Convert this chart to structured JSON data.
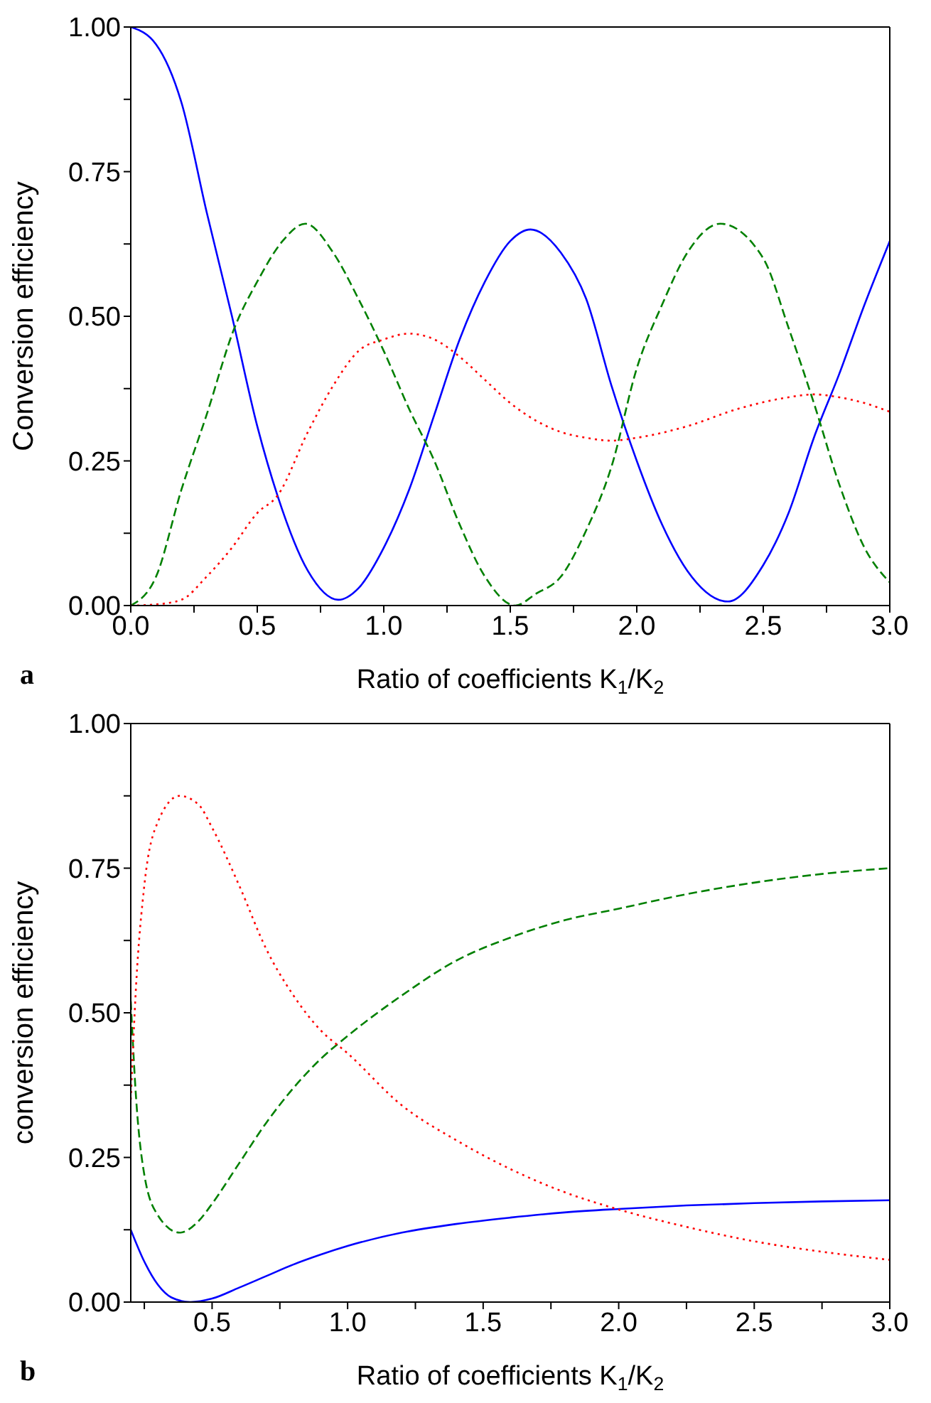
{
  "chart_data": [
    {
      "type": "line",
      "xlabel": "Ratio of coefficients K$_{1}$/K$_{2}$",
      "ylabel": "Conversion efficiency",
      "annotations": [
        "a"
      ],
      "xlim": [
        0,
        3.0
      ],
      "ylim": [
        0,
        1.0
      ],
      "xticks": [
        {
          "value": 0,
          "label": "0.0"
        },
        {
          "value": 0.25,
          "label": null
        },
        {
          "value": 0.5,
          "label": "0.5"
        },
        {
          "value": 0.75,
          "label": null
        },
        {
          "value": 1.0,
          "label": "1.0"
        },
        {
          "value": 1.25,
          "label": null
        },
        {
          "value": 1.5,
          "label": "1.5"
        },
        {
          "value": 1.75,
          "label": null
        },
        {
          "value": 2.0,
          "label": "2.0"
        },
        {
          "value": 2.25,
          "label": null
        },
        {
          "value": 2.5,
          "label": "2.5"
        },
        {
          "value": 2.75,
          "label": null
        },
        {
          "value": 3.0,
          "label": "3.0"
        }
      ],
      "yticks": [
        {
          "value": 0,
          "label": "0.00"
        },
        {
          "value": 0.125,
          "label": null
        },
        {
          "value": 0.25,
          "label": "0.25"
        },
        {
          "value": 0.375,
          "label": null
        },
        {
          "value": 0.5,
          "label": "0.50"
        },
        {
          "value": 0.625,
          "label": null
        },
        {
          "value": 0.75,
          "label": "0.75"
        },
        {
          "value": 0.875,
          "label": null
        },
        {
          "value": 1.0,
          "label": "1.00"
        }
      ],
      "series": [
        {
          "color": "#0000ff",
          "line_style": "solid",
          "x": [
            0,
            0.1,
            0.2,
            0.3,
            0.4,
            0.5,
            0.58,
            0.7,
            0.82,
            0.9,
            1.0,
            1.1,
            1.2,
            1.3,
            1.4,
            1.5,
            1.58,
            1.7,
            1.8,
            1.9,
            2.0,
            2.1,
            2.2,
            2.36,
            2.5,
            2.6,
            2.7,
            2.8,
            2.9,
            3.0
          ],
          "values": [
            1.0,
            0.97,
            0.87,
            0.68,
            0.5,
            0.31,
            0.19,
            0.06,
            0.01,
            0.03,
            0.1,
            0.2,
            0.33,
            0.46,
            0.56,
            0.63,
            0.65,
            0.61,
            0.53,
            0.38,
            0.25,
            0.14,
            0.06,
            0.007,
            0.07,
            0.16,
            0.29,
            0.4,
            0.52,
            0.63
          ]
        },
        {
          "color": "#008000",
          "line_style": "dashed",
          "x": [
            0,
            0.1,
            0.2,
            0.3,
            0.41,
            0.5,
            0.6,
            0.69,
            0.8,
            0.9,
            1.0,
            1.1,
            1.2,
            1.3,
            1.4,
            1.52,
            1.6,
            1.7,
            1.8,
            1.9,
            2.0,
            2.1,
            2.2,
            2.33,
            2.5,
            2.6,
            2.7,
            2.8,
            2.9,
            3.0
          ],
          "values": [
            0,
            0.05,
            0.2,
            0.33,
            0.48,
            0.56,
            0.63,
            0.66,
            0.61,
            0.53,
            0.44,
            0.34,
            0.25,
            0.14,
            0.05,
            0,
            0.02,
            0.05,
            0.13,
            0.24,
            0.41,
            0.52,
            0.61,
            0.66,
            0.6,
            0.48,
            0.35,
            0.21,
            0.1,
            0.04
          ]
        },
        {
          "color": "#ff0000",
          "line_style": "dotted",
          "x": [
            0,
            0.1,
            0.2,
            0.3,
            0.4,
            0.5,
            0.58,
            0.7,
            0.8,
            0.9,
            1.0,
            1.1,
            1.2,
            1.3,
            1.4,
            1.5,
            1.6,
            1.7,
            1.8,
            1.9,
            2.0,
            2.2,
            2.4,
            2.6,
            2.7,
            2.8,
            2.9,
            3.0
          ],
          "values": [
            0,
            0.002,
            0.01,
            0.05,
            0.1,
            0.16,
            0.19,
            0.3,
            0.38,
            0.44,
            0.46,
            0.47,
            0.46,
            0.43,
            0.39,
            0.35,
            0.32,
            0.3,
            0.29,
            0.285,
            0.29,
            0.31,
            0.34,
            0.36,
            0.365,
            0.36,
            0.35,
            0.335
          ]
        }
      ]
    },
    {
      "type": "line",
      "xlabel": "Ratio of coefficients K$_{1}$/K$_{2}$",
      "ylabel": "conversion efficiency",
      "annotations": [
        "b"
      ],
      "xlim": [
        0.2,
        3.0
      ],
      "ylim": [
        0,
        1.0
      ],
      "xticks": [
        {
          "value": 0.25,
          "label": null
        },
        {
          "value": 0.5,
          "label": "0.5"
        },
        {
          "value": 0.75,
          "label": null
        },
        {
          "value": 1.0,
          "label": "1.0"
        },
        {
          "value": 1.25,
          "label": null
        },
        {
          "value": 1.5,
          "label": "1.5"
        },
        {
          "value": 1.75,
          "label": null
        },
        {
          "value": 2.0,
          "label": "2.0"
        },
        {
          "value": 2.25,
          "label": null
        },
        {
          "value": 2.5,
          "label": "2.5"
        },
        {
          "value": 2.75,
          "label": null
        },
        {
          "value": 3.0,
          "label": "3.0"
        }
      ],
      "yticks": [
        {
          "value": 0,
          "label": "0.00"
        },
        {
          "value": 0.125,
          "label": null
        },
        {
          "value": 0.25,
          "label": "0.25"
        },
        {
          "value": 0.375,
          "label": null
        },
        {
          "value": 0.5,
          "label": "0.50"
        },
        {
          "value": 0.625,
          "label": null
        },
        {
          "value": 0.75,
          "label": "0.75"
        },
        {
          "value": 0.875,
          "label": null
        },
        {
          "value": 1.0,
          "label": "1.00"
        }
      ],
      "series": [
        {
          "color": "#0000ff",
          "line_style": "solid",
          "x": [
            0.2,
            0.25,
            0.3,
            0.35,
            0.42,
            0.5,
            0.6,
            0.7,
            0.8,
            0.9,
            1.0,
            1.2,
            1.4,
            1.6,
            1.8,
            2.0,
            2.25,
            2.5,
            2.75,
            3.0
          ],
          "values": [
            0.125,
            0.07,
            0.03,
            0.008,
            0,
            0.006,
            0.025,
            0.045,
            0.065,
            0.082,
            0.097,
            0.12,
            0.135,
            0.146,
            0.155,
            0.161,
            0.167,
            0.171,
            0.174,
            0.176
          ]
        },
        {
          "color": "#008000",
          "line_style": "dashed",
          "x": [
            0.2,
            0.22,
            0.25,
            0.3,
            0.38,
            0.45,
            0.5,
            0.6,
            0.7,
            0.8,
            0.9,
            1.0,
            1.2,
            1.4,
            1.6,
            1.8,
            2.0,
            2.25,
            2.5,
            2.75,
            3.0
          ],
          "values": [
            0.52,
            0.35,
            0.22,
            0.15,
            0.12,
            0.14,
            0.17,
            0.24,
            0.31,
            0.37,
            0.42,
            0.46,
            0.53,
            0.59,
            0.63,
            0.66,
            0.68,
            0.705,
            0.725,
            0.74,
            0.75
          ]
        },
        {
          "color": "#ff0000",
          "line_style": "dotted",
          "x": [
            0.2,
            0.22,
            0.25,
            0.3,
            0.38,
            0.45,
            0.5,
            0.6,
            0.7,
            0.8,
            0.9,
            1.0,
            1.2,
            1.4,
            1.6,
            1.8,
            2.0,
            2.25,
            2.5,
            2.75,
            3.0
          ],
          "values": [
            0.35,
            0.55,
            0.72,
            0.83,
            0.875,
            0.86,
            0.82,
            0.72,
            0.61,
            0.53,
            0.47,
            0.43,
            0.34,
            0.28,
            0.23,
            0.19,
            0.16,
            0.13,
            0.105,
            0.087,
            0.073
          ]
        }
      ]
    }
  ]
}
